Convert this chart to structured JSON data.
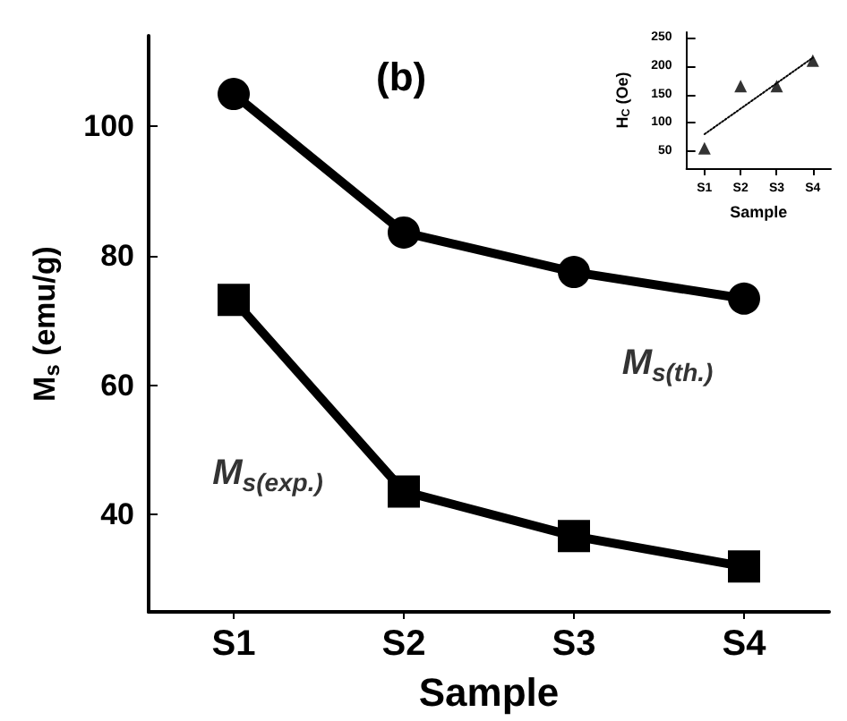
{
  "chart_data": [
    {
      "type": "line",
      "title": "(b)",
      "xlabel": "Sample",
      "ylabel": "M$_{s}$ (emu/g)",
      "categories": [
        "S1",
        "S2",
        "S3",
        "S4"
      ],
      "ylim": [
        25,
        114
      ],
      "yticks": [
        40,
        60,
        80,
        100
      ],
      "line_style": "solid",
      "grid": false,
      "legend": false,
      "series": [
        {
          "name": "M$_{s(th.)}$",
          "color": "#000000",
          "marker": "circle",
          "values": [
            105,
            83.6,
            77.5,
            73.4
          ]
        },
        {
          "name": "M$_{s(exp.)}$",
          "color": "#000000",
          "marker": "square",
          "values": [
            73.2,
            43.6,
            36.7,
            32
          ]
        }
      ]
    },
    {
      "type": "scatter",
      "xlabel": "Sample",
      "ylabel": "H$_{C}$ (Oe)",
      "categories": [
        "S1",
        "S2",
        "S3",
        "S4"
      ],
      "ylim": [
        20,
        260
      ],
      "yticks": [
        50,
        100,
        150,
        200,
        250
      ],
      "grid": false,
      "legend": false,
      "series": [
        {
          "color": "#000000",
          "marker": "triangle",
          "values": [
            55,
            165,
            165,
            210
          ]
        },
        {
          "type": "line",
          "color": "#000000",
          "marker": "none",
          "line_style": "dotted",
          "values": [
            80,
            125,
            170,
            215
          ]
        }
      ]
    }
  ]
}
